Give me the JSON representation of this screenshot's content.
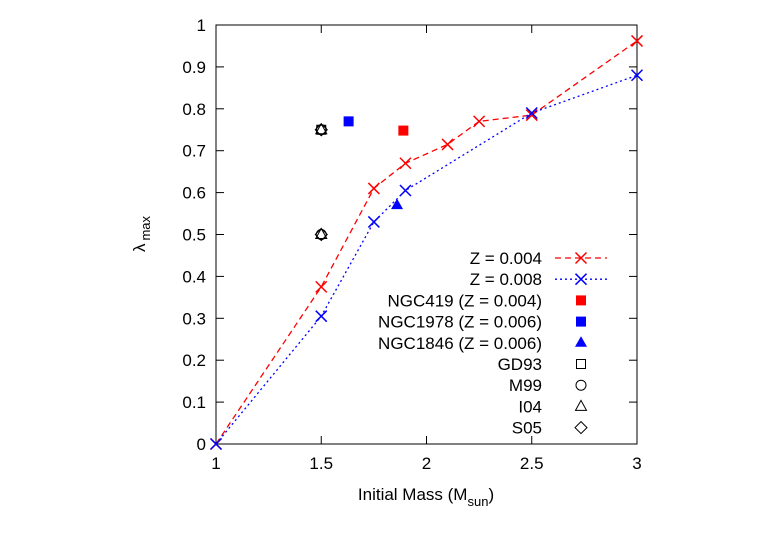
{
  "chart_data": {
    "type": "line",
    "xlabel": "Initial Mass (M",
    "xlabel_sub": "sun",
    "xlabel_end": ")",
    "ylabel": "λ",
    "ylabel_sub": "max",
    "xlim": [
      1,
      3
    ],
    "ylim": [
      0,
      1
    ],
    "xticks": [
      "1",
      "1.5",
      "2",
      "2.5",
      "3"
    ],
    "yticks": [
      "0",
      "0.1",
      "0.2",
      "0.3",
      "0.4",
      "0.5",
      "0.6",
      "0.7",
      "0.8",
      "0.9",
      "1"
    ],
    "grid": false,
    "legend_position": "bottom-right",
    "series": [
      {
        "name": "Z = 0.004",
        "color": "#ff0000",
        "style": "dashed",
        "marker": "x",
        "x": [
          1.0,
          1.5,
          1.75,
          1.9,
          2.1,
          2.25,
          2.5,
          3.0
        ],
        "y": [
          0.0,
          0.375,
          0.61,
          0.67,
          0.715,
          0.77,
          0.785,
          0.962
        ]
      },
      {
        "name": "Z = 0.008",
        "color": "#0000ff",
        "style": "dotted",
        "marker": "x",
        "x": [
          1.0,
          1.5,
          1.75,
          1.9,
          2.5,
          3.0
        ],
        "y": [
          0.0,
          0.305,
          0.53,
          0.605,
          0.79,
          0.88
        ]
      }
    ],
    "points": [
      {
        "name": "NGC419 (Z = 0.004)",
        "color": "#ff0000",
        "marker": "filled-square",
        "x": [
          1.89
        ],
        "y": [
          0.748
        ]
      },
      {
        "name": "NGC1978 (Z = 0.006)",
        "color": "#0000ff",
        "marker": "filled-square",
        "x": [
          1.63
        ],
        "y": [
          0.77
        ]
      },
      {
        "name": "NGC1846 (Z = 0.006)",
        "color": "#0000ff",
        "marker": "filled-triangle",
        "x": [
          1.86
        ],
        "y": [
          0.57
        ]
      },
      {
        "name": "GD93",
        "color": "#000000",
        "marker": "open-square",
        "x": [
          1.5
        ],
        "y": [
          0.75
        ]
      },
      {
        "name": "M99",
        "color": "#000000",
        "marker": "open-circle",
        "x": [
          1.5,
          1.5
        ],
        "y": [
          0.75,
          0.5
        ]
      },
      {
        "name": "I04",
        "color": "#000000",
        "marker": "open-triangle",
        "x": [
          1.5,
          1.5
        ],
        "y": [
          0.75,
          0.5
        ]
      },
      {
        "name": "S05",
        "color": "#000000",
        "marker": "open-diamond",
        "x": [
          1.5,
          1.5
        ],
        "y": [
          0.75,
          0.5
        ]
      }
    ]
  }
}
